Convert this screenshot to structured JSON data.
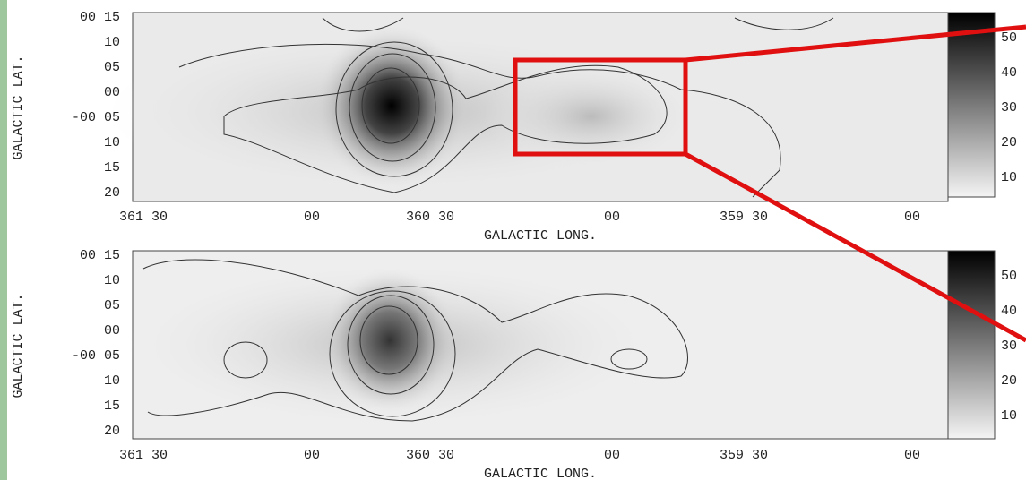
{
  "panels": [
    {
      "y_axis_label": "GALACTIC LAT.",
      "y_tick_labels": [
        "00 15",
        "10",
        "05",
        "00",
        "-00 05",
        "10",
        "15",
        "20"
      ],
      "x_axis_label": "GALACTIC LONG.",
      "x_tick_labels": [
        "361 30",
        "00",
        "360 30",
        "00",
        "359 30",
        "00"
      ],
      "colorbar_labels": [
        "50",
        "40",
        "30",
        "20",
        "10"
      ]
    },
    {
      "y_axis_label": "GALACTIC LAT.",
      "y_tick_labels": [
        "00 15",
        "10",
        "05",
        "00",
        "-00 05",
        "10",
        "15",
        "20"
      ],
      "x_axis_label": "GALACTIC LONG.",
      "x_tick_labels": [
        "361 30",
        "00",
        "360 30",
        "00",
        "359 30",
        "00"
      ],
      "colorbar_labels": [
        "50",
        "40",
        "30",
        "20",
        "10"
      ]
    }
  ]
}
